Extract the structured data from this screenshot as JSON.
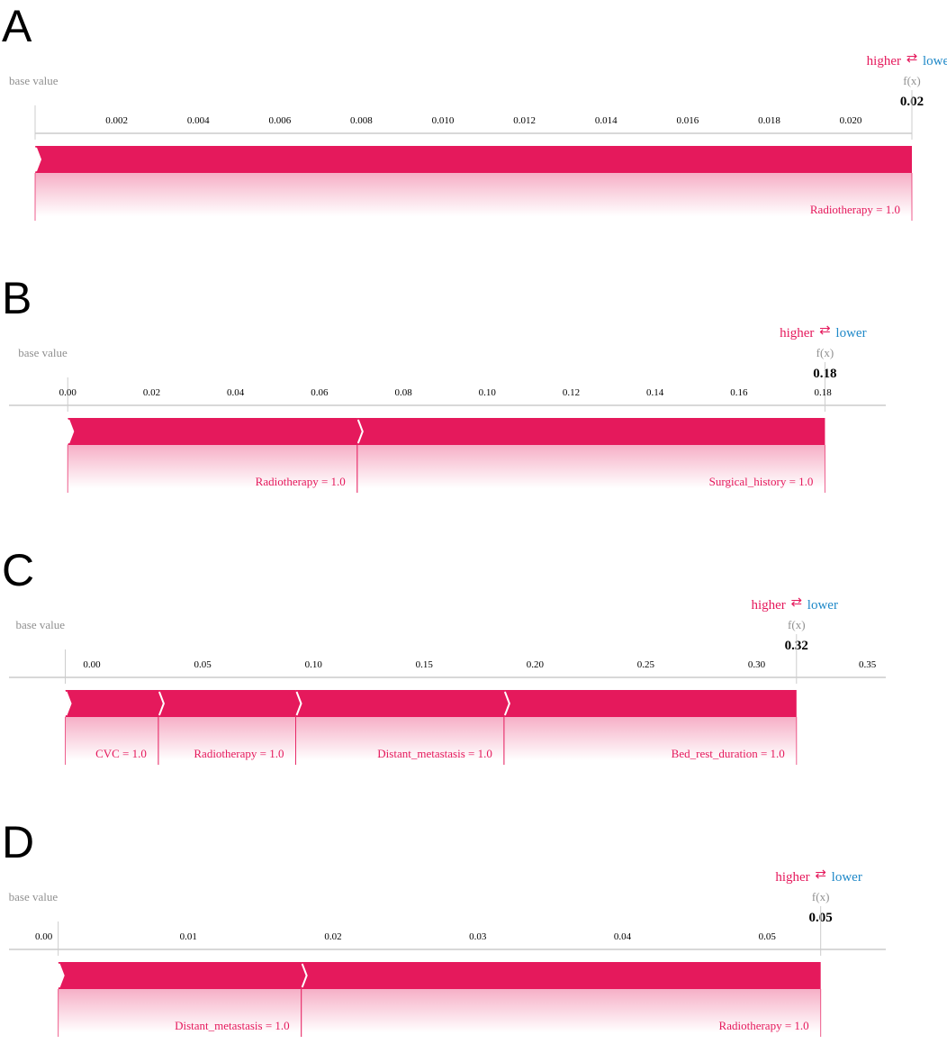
{
  "colors": {
    "positive": "#e5195c",
    "negative": "#1e88c8",
    "axis": "#cccccc",
    "muted": "#909090"
  },
  "legend": {
    "higher": "higher",
    "lower": "lower",
    "arrow": "⇄",
    "fx": "f(x)",
    "base_value": "base value"
  },
  "chart_data": [
    {
      "panel": "A",
      "type": "force",
      "base_value": 0.0,
      "fx_value": "0.02",
      "output": 0.0215,
      "xlim": [
        0.0,
        0.0215
      ],
      "ticks": [
        "0.002",
        "0.004",
        "0.006",
        "0.008",
        "0.010",
        "0.012",
        "0.014",
        "0.016",
        "0.018",
        "0.020"
      ],
      "tick_values": [
        0.002,
        0.004,
        0.006,
        0.008,
        0.01,
        0.012,
        0.014,
        0.016,
        0.018,
        0.02
      ],
      "features": [
        {
          "label": "Radiotherapy = 1.0",
          "start": 0.0,
          "end": 0.0215
        }
      ]
    },
    {
      "panel": "B",
      "type": "force",
      "base_value": 0.0,
      "fx_value": "0.18",
      "output": 0.1805,
      "xlim": [
        -0.014,
        0.195
      ],
      "ticks": [
        "0.00",
        "0.02",
        "0.04",
        "0.06",
        "0.08",
        "0.10",
        "0.12",
        "0.14",
        "0.16",
        "0.18"
      ],
      "tick_values": [
        0.0,
        0.02,
        0.04,
        0.06,
        0.08,
        0.1,
        0.12,
        0.14,
        0.16,
        0.18
      ],
      "features": [
        {
          "label": "Radiotherapy = 1.0",
          "start": 0.0,
          "end": 0.069
        },
        {
          "label": "Surgical_history = 1.0",
          "start": 0.069,
          "end": 0.1805
        }
      ]
    },
    {
      "panel": "C",
      "type": "force",
      "base_value": -0.012,
      "fx_value": "0.32",
      "output": 0.318,
      "xlim": [
        -0.0374,
        0.3583
      ],
      "ticks": [
        "0.00",
        "0.05",
        "0.10",
        "0.15",
        "0.20",
        "0.25",
        "0.30",
        "0.35"
      ],
      "tick_values": [
        0.0,
        0.05,
        0.1,
        0.15,
        0.2,
        0.25,
        0.3,
        0.35
      ],
      "features": [
        {
          "label": "CVC = 1.0",
          "start": -0.012,
          "end": 0.03
        },
        {
          "label": "Radiotherapy = 1.0",
          "start": 0.03,
          "end": 0.092
        },
        {
          "label": "Distant_metastasis = 1.0",
          "start": 0.092,
          "end": 0.186
        },
        {
          "label": "Bed_rest_duration = 1.0",
          "start": 0.186,
          "end": 0.318
        }
      ]
    },
    {
      "panel": "D",
      "type": "force",
      "base_value": 0.001,
      "fx_value": "0.05",
      "output": 0.0537,
      "xlim": [
        -0.0024,
        0.0582
      ],
      "ticks": [
        "0.00",
        "0.01",
        "0.02",
        "0.03",
        "0.04",
        "0.05"
      ],
      "tick_values": [
        0.0,
        0.01,
        0.02,
        0.03,
        0.04,
        0.05
      ],
      "features": [
        {
          "label": "Distant_metastasis = 1.0",
          "start": 0.001,
          "end": 0.0178
        },
        {
          "label": "Radiotherapy = 1.0",
          "start": 0.0178,
          "end": 0.0537
        }
      ]
    }
  ]
}
